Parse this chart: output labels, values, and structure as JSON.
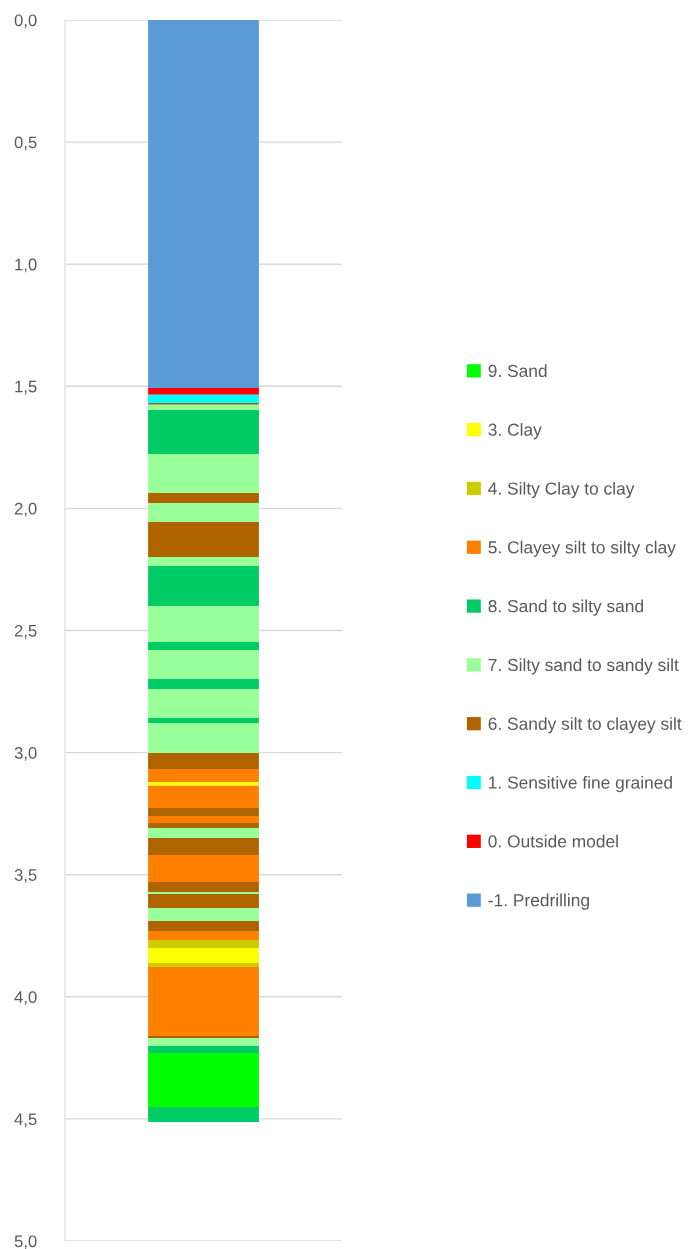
{
  "chart_data": {
    "type": "bar",
    "stacked": true,
    "categories": [
      null
    ],
    "ylim": [
      5.0,
      0.0
    ],
    "yticks": [
      {
        "value": 0,
        "label": "0,0"
      },
      {
        "value": 0.5,
        "label": "0,5"
      },
      {
        "value": 1.0,
        "label": "1,0"
      },
      {
        "value": 1.5,
        "label": "1,5"
      },
      {
        "value": 2.0,
        "label": "2,0"
      },
      {
        "value": 2.5,
        "label": "2,5"
      },
      {
        "value": 3.0,
        "label": "3,0"
      },
      {
        "value": 3.5,
        "label": "3,5"
      },
      {
        "value": 4.0,
        "label": "4,0"
      },
      {
        "value": 4.5,
        "label": "4,5"
      },
      {
        "value": 5.0,
        "label": "5,0"
      }
    ],
    "grid": "y",
    "legend": "right",
    "series": [
      {
        "name": "-1. Predrilling",
        "color": "#5b9bd5",
        "values": [
          1.507
        ]
      },
      {
        "name": "0. Outside model",
        "color": "#ff0000",
        "values": [
          0.028
        ]
      },
      {
        "name": "1. Sensitive fine grained",
        "color": "#00ffff",
        "values": [
          0.033
        ]
      },
      {
        "name": "6. Sandy silt to clayey silt",
        "color": "#b06400",
        "values": [
          0.008
        ]
      },
      {
        "name": "7. Silty sand to sandy silt",
        "color": "#99ff99",
        "values": [
          0.021
        ]
      },
      {
        "name": "8. Sand to silty sand",
        "color": "#00cc66",
        "values": [
          0.18
        ]
      },
      {
        "color": "#99ff99",
        "values": [
          0.16
        ]
      },
      {
        "color": "#b06400",
        "values": [
          0.041
        ]
      },
      {
        "color": "#99ff99",
        "values": [
          0.078
        ]
      },
      {
        "color": "#b06400",
        "values": [
          0.143
        ]
      },
      {
        "color": "#99ff99",
        "values": [
          0.037
        ]
      },
      {
        "color": "#00cc66",
        "values": [
          0.164
        ]
      },
      {
        "color": "#99ff99",
        "values": [
          0.147
        ]
      },
      {
        "color": "#00cc66",
        "values": [
          0.033
        ]
      },
      {
        "color": "#99ff99",
        "values": [
          0.119
        ]
      },
      {
        "color": "#00cc66",
        "values": [
          0.041
        ]
      },
      {
        "color": "#99ff99",
        "values": [
          0.118
        ]
      },
      {
        "color": "#00cc66",
        "values": [
          0.021
        ]
      },
      {
        "color": "#99ff99",
        "values": [
          0.123
        ]
      },
      {
        "color": "#b06400",
        "values": [
          0.065
        ]
      },
      {
        "name": "5. Clayey silt to silty clay",
        "color": "#ff8000",
        "values": [
          0.053
        ]
      },
      {
        "color": "#ffff00",
        "values": [
          0.016
        ]
      },
      {
        "color": "#ff8000",
        "values": [
          0.091
        ]
      },
      {
        "color": "#b06400",
        "values": [
          0.033
        ]
      },
      {
        "color": "#ff8000",
        "values": [
          0.028
        ]
      },
      {
        "color": "#b06400",
        "values": [
          0.021
        ]
      },
      {
        "color": "#99ff99",
        "values": [
          0.041
        ]
      },
      {
        "color": "#b06400",
        "values": [
          0.069
        ]
      },
      {
        "color": "#ff8000",
        "values": [
          0.111
        ]
      },
      {
        "color": "#b06400",
        "values": [
          0.041
        ]
      },
      {
        "color": "#99ff99",
        "values": [
          0.008
        ]
      },
      {
        "color": "#b06400",
        "values": [
          0.057
        ]
      },
      {
        "color": "#99ff99",
        "values": [
          0.054
        ]
      },
      {
        "color": "#b06400",
        "values": [
          0.041
        ]
      },
      {
        "color": "#ff8000",
        "values": [
          0.036
        ]
      },
      {
        "name": "4. Silty Clay to clay",
        "color": "#cccc00",
        "values": [
          0.033
        ]
      },
      {
        "name": "3. Clay",
        "color": "#ffff00",
        "values": [
          0.062
        ]
      },
      {
        "color": "#cccc00",
        "values": [
          0.016
        ]
      },
      {
        "color": "#ff8000",
        "values": [
          0.283
        ]
      },
      {
        "color": "#b06400",
        "values": [
          0.008
        ]
      },
      {
        "color": "#99ff99",
        "values": [
          0.032
        ]
      },
      {
        "color": "#00cc66",
        "values": [
          0.029
        ]
      },
      {
        "name": "9. Sand",
        "color": "#00ff00",
        "values": [
          0.221
        ]
      },
      {
        "color": "#00cc66",
        "values": [
          0.062
        ]
      }
    ]
  }
}
